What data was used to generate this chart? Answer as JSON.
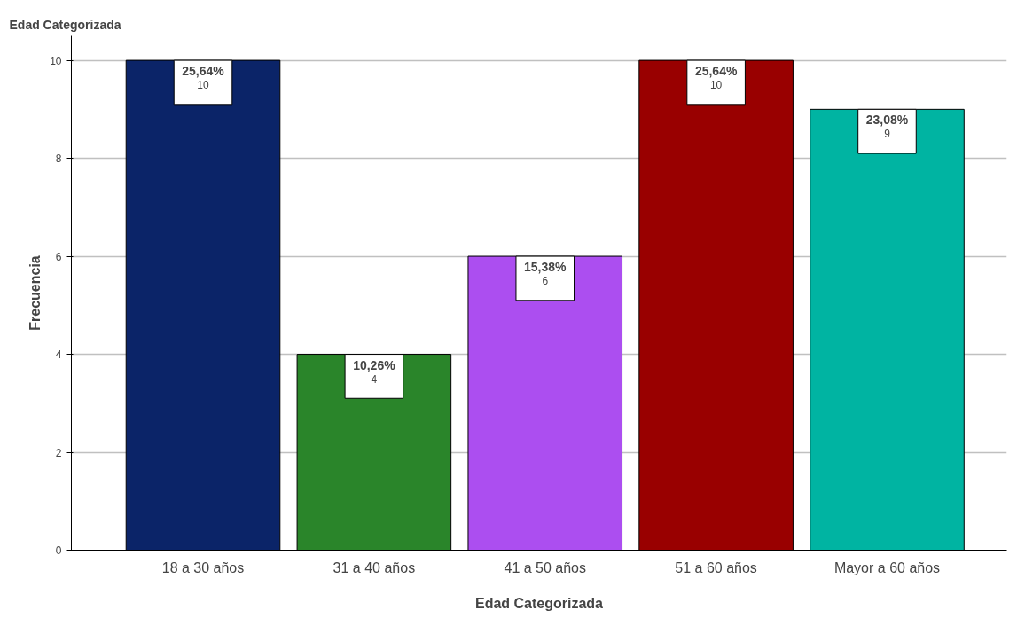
{
  "chart_data": {
    "type": "bar",
    "title": "Edad Categorizada",
    "xlabel": "Edad Categorizada",
    "ylabel": "Frecuencia",
    "categories": [
      "18 a 30 años",
      "31 a 40 años",
      "41 a 50 años",
      "51 a 60 años",
      "Mayor a 60 años"
    ],
    "values": [
      10,
      4,
      6,
      10,
      9
    ],
    "colors": [
      "#0b2468",
      "#2a852a",
      "#ac4ef0",
      "#990000",
      "#00b4a2"
    ],
    "annotations": [
      {
        "text": "25,64%",
        "x": "18 a 30 años",
        "y": 10
      },
      {
        "text": "10,26%",
        "x": "31 a 40 años",
        "y": 4
      },
      {
        "text": "15,38%",
        "x": "41 a 50 años",
        "y": 6
      },
      {
        "text": "25,64%",
        "x": "51 a 60 años",
        "y": 10
      },
      {
        "text": "23,08%",
        "x": "Mayor a 60 años",
        "y": 9
      }
    ],
    "data_labels": true,
    "ylim": [
      0,
      10.5
    ],
    "yticks": [
      0,
      2,
      4,
      6,
      8,
      10
    ],
    "grid": "y"
  }
}
